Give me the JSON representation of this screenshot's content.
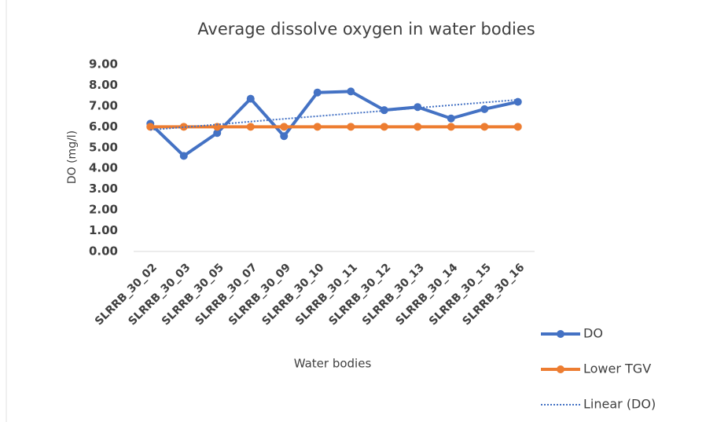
{
  "chart_data": {
    "type": "line",
    "title": "Average dissolve oxygen in water bodies",
    "x_label": "Water bodies",
    "y_label": "DO (mg/l)",
    "categories": [
      "SLRRB_30_02",
      "SLRRB_30_03",
      "SLRRB_30_05",
      "SLRRB_30_07",
      "SLRRB_30_09",
      "SLRRB_30_10",
      "SLRRB_30_11",
      "SLRRB_30_12",
      "SLRRB_30_13",
      "SLRRB_30_14",
      "SLRRB_30_15",
      "SLRRB_30_16"
    ],
    "series": [
      {
        "name": "DO",
        "color": "#4472c4",
        "style": "solid",
        "marker": true,
        "values": [
          6.15,
          4.6,
          5.7,
          7.35,
          5.55,
          7.65,
          7.7,
          6.8,
          6.95,
          6.4,
          6.85,
          7.2
        ]
      },
      {
        "name": "Lower TGV",
        "color": "#ed7d31",
        "style": "solid",
        "marker": true,
        "values": [
          6,
          6,
          6,
          6,
          6,
          6,
          6,
          6,
          6,
          6,
          6,
          6
        ]
      },
      {
        "name": "Linear (DO)",
        "color": "#4472c4",
        "style": "dotted",
        "marker": false,
        "values": [
          5.85,
          5.98,
          6.11,
          6.25,
          6.38,
          6.51,
          6.64,
          6.77,
          6.91,
          7.04,
          7.17,
          7.3
        ]
      }
    ],
    "ylim": [
      0,
      9
    ],
    "yticks": [
      {
        "value": 0,
        "label": "0.00"
      },
      {
        "value": 1,
        "label": "1.00"
      },
      {
        "value": 2,
        "label": "2.00"
      },
      {
        "value": 3,
        "label": "3.00"
      },
      {
        "value": 4,
        "label": "4.00"
      },
      {
        "value": 5,
        "label": "5.00"
      },
      {
        "value": 6,
        "label": "6.00"
      },
      {
        "value": 7,
        "label": "7.00"
      },
      {
        "value": 8,
        "label": "8.00"
      },
      {
        "value": 9,
        "label": "9.00"
      }
    ],
    "grid": false,
    "legend": "right"
  }
}
